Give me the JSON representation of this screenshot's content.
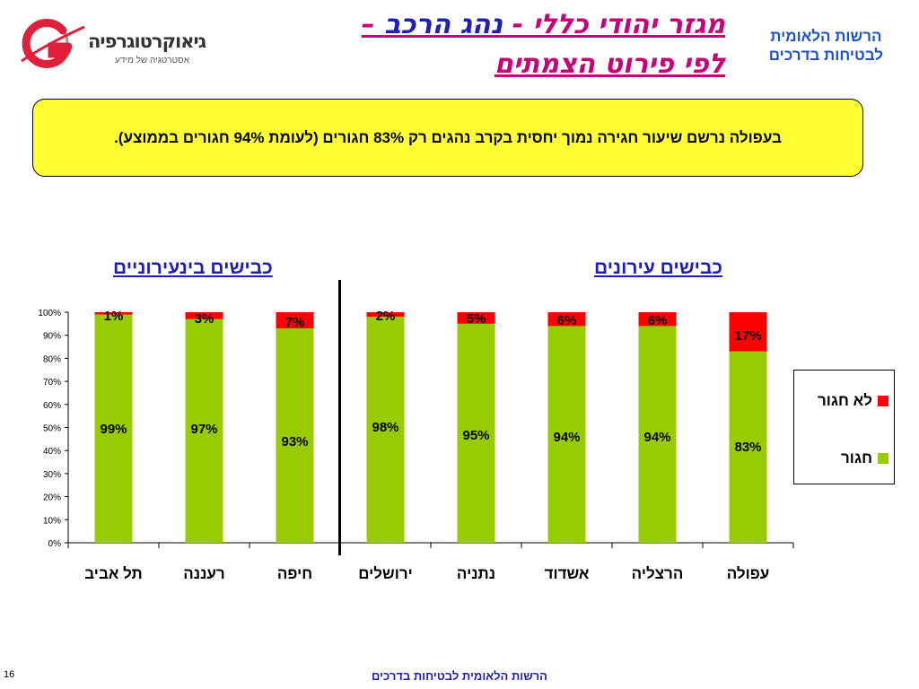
{
  "logo": {
    "name": "גיאוקרטוגרפיה",
    "tagline": "אסטרטגיה של מידע",
    "icon": "geo-g-logo"
  },
  "title": {
    "line1_a": "מגזר יהודי כללי - ",
    "line1_b": "נהג הרכב",
    "line1_c": " –",
    "line2": "לפי פירוט הצמתים"
  },
  "authority": {
    "line1": "הרשות הלאומית",
    "line2": "לבטיחות בדרכים"
  },
  "note": "בעפולה נרשם שיעור חגירה נמוך יחסית בקרב נהגים רק 83% חגורים (לעומת 94% חגורים בממוצע).",
  "chart_data": {
    "type": "bar",
    "stacked": true,
    "categories": [
      "תל אביב",
      "רעננה",
      "חיפה",
      "ירושלים",
      "נתניה",
      "אשדוד",
      "הרצליה",
      "עפולה"
    ],
    "series": [
      {
        "name": "חגור",
        "color": "#99cc00",
        "values": [
          99,
          97,
          93,
          98,
          95,
          94,
          94,
          83
        ]
      },
      {
        "name": "לא חגור",
        "color": "#ff0000",
        "values": [
          1,
          3,
          7,
          2,
          5,
          6,
          6,
          17
        ]
      }
    ],
    "data_labels_green": [
      "99%",
      "97%",
      "93%",
      "98%",
      "95%",
      "94%",
      "94%",
      "83%"
    ],
    "data_labels_red": [
      "1%",
      "3%",
      "7%",
      "2%",
      "5%",
      "6%",
      "6%",
      "17%"
    ],
    "y_ticks": [
      "0%",
      "10%",
      "20%",
      "30%",
      "40%",
      "50%",
      "60%",
      "70%",
      "80%",
      "90%",
      "100%"
    ],
    "ylim": [
      0,
      100
    ],
    "groups": [
      {
        "name": "כבישים בינעירוניים",
        "categories": [
          "תל אביב",
          "רעננה",
          "חיפה"
        ]
      },
      {
        "name": "כבישים עירונים",
        "categories": [
          "ירושלים",
          "נתניה",
          "אשדוד",
          "הרצליה",
          "עפולה"
        ]
      }
    ],
    "legend": {
      "position": "right",
      "entries": [
        "לא חגור",
        "חגור"
      ]
    },
    "grid": false
  },
  "footer": "הרשות הלאומית לבטיחות בדרכים",
  "page_number": "16"
}
